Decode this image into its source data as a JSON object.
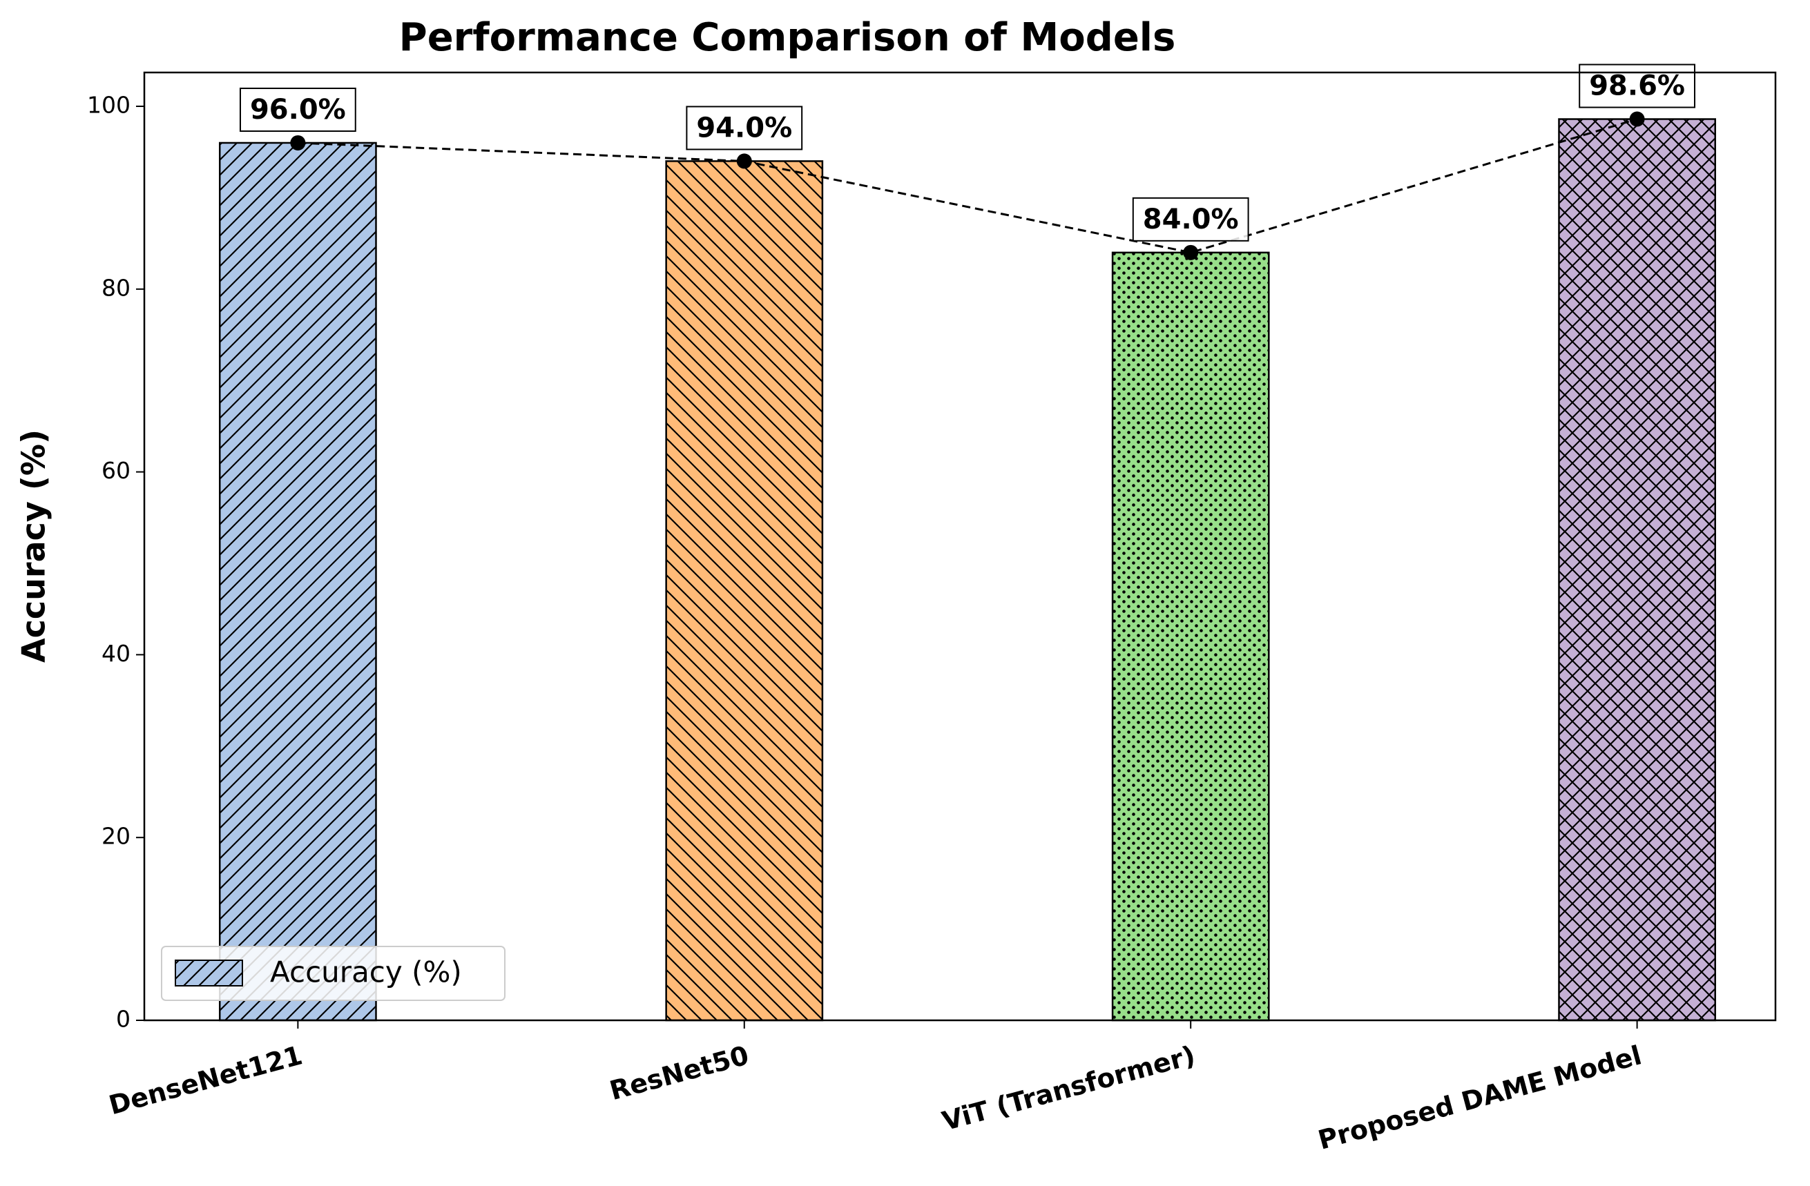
{
  "chart_data": {
    "type": "bar",
    "title": "Performance Comparison of Models",
    "y_label": "Accuracy (%)",
    "categories": [
      "DenseNet121",
      "ResNet50",
      "ViT (Transformer)",
      "Proposed DAME Model"
    ],
    "series": [
      {
        "name": "Accuracy (%)",
        "values": [
          96.0,
          94.0,
          84.0,
          98.6
        ],
        "value_labels": [
          "96.0%",
          "94.0%",
          "84.0%",
          "98.6%"
        ],
        "colors": [
          "#aec7e8",
          "#ffbb78",
          "#98df8a",
          "#c5b0d5"
        ],
        "hatches": [
          "//",
          "\\\\",
          "..",
          "xx"
        ]
      }
    ],
    "trend_line": true,
    "ylim": [
      0,
      103.7
    ],
    "yticks": [
      0,
      20,
      40,
      60,
      80,
      100
    ],
    "legend": "lower left"
  }
}
